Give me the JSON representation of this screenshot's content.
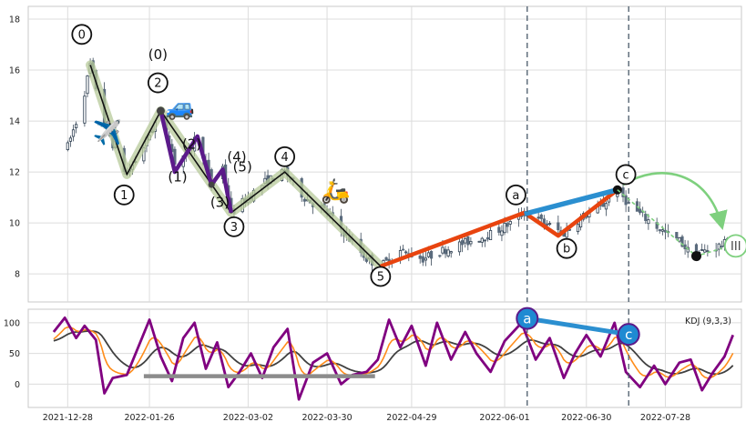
{
  "chart_data": [
    {
      "type": "candlestick",
      "panel": "price",
      "ylim": [
        6.9,
        18.5
      ],
      "xlim": [
        "2021-12-14",
        "2022-08-24"
      ],
      "yticks": [
        8,
        10,
        12,
        14,
        16,
        18
      ],
      "grid": true,
      "price_path": [
        [
          "2021-12-28",
          13.0
        ],
        [
          "2022-01-02",
          14.6
        ],
        [
          "2022-01-05",
          16.2
        ],
        [
          "2022-01-10",
          14.0
        ],
        [
          "2022-01-15",
          12.5
        ],
        [
          "2022-01-18",
          11.9
        ],
        [
          "2022-01-24",
          13.0
        ],
        [
          "2022-01-30",
          14.4
        ],
        [
          "2022-02-04",
          12.4
        ],
        [
          "2022-02-09",
          12.8
        ],
        [
          "2022-02-12",
          13.5
        ],
        [
          "2022-02-17",
          11.5
        ],
        [
          "2022-02-21",
          12.2
        ],
        [
          "2022-02-24",
          10.4
        ],
        [
          "2022-03-02",
          11.0
        ],
        [
          "2022-03-08",
          11.6
        ],
        [
          "2022-03-15",
          12.0
        ],
        [
          "2022-03-22",
          11.0
        ],
        [
          "2022-03-30",
          10.4
        ],
        [
          "2022-04-06",
          9.5
        ],
        [
          "2022-04-13",
          8.6
        ],
        [
          "2022-04-18",
          8.3
        ],
        [
          "2022-04-25",
          8.9
        ],
        [
          "2022-05-03",
          8.6
        ],
        [
          "2022-05-12",
          9.0
        ],
        [
          "2022-05-20",
          9.3
        ],
        [
          "2022-05-28",
          9.6
        ],
        [
          "2022-06-03",
          10.0
        ],
        [
          "2022-06-08",
          10.4
        ],
        [
          "2022-06-15",
          10.0
        ],
        [
          "2022-06-22",
          9.6
        ],
        [
          "2022-06-28",
          10.2
        ],
        [
          "2022-07-05",
          10.6
        ],
        [
          "2022-07-11",
          11.3
        ],
        [
          "2022-07-16",
          10.6
        ],
        [
          "2022-07-22",
          10.1
        ],
        [
          "2022-07-28",
          9.6
        ],
        [
          "2022-08-02",
          9.3
        ],
        [
          "2022-08-06",
          8.8
        ],
        [
          "2022-08-11",
          8.9
        ],
        [
          "2022-08-16",
          9.1
        ],
        [
          "2022-08-21",
          9.3
        ]
      ],
      "elliott_main": [
        [
          "2022-01-05",
          16.2
        ],
        [
          "2022-01-18",
          11.9
        ],
        [
          "2022-01-30",
          14.4
        ],
        [
          "2022-02-24",
          10.4
        ],
        [
          "2022-03-15",
          12.0
        ],
        [
          "2022-04-18",
          8.3
        ]
      ],
      "elliott_sub": [
        [
          "2022-01-30",
          14.4
        ],
        [
          "2022-02-04",
          12.0
        ],
        [
          "2022-02-12",
          13.4
        ],
        [
          "2022-02-17",
          11.5
        ],
        [
          "2022-02-21",
          12.1
        ],
        [
          "2022-02-24",
          10.4
        ]
      ],
      "correction_abc": [
        [
          "2022-04-18",
          8.3
        ],
        [
          "2022-06-08",
          10.4
        ],
        [
          "2022-06-20",
          9.5
        ],
        [
          "2022-07-11",
          11.3
        ]
      ],
      "ac_line": [
        [
          "2022-06-08",
          10.35
        ],
        [
          "2022-07-11",
          11.3
        ]
      ],
      "projection": [
        [
          "2022-07-11",
          11.3
        ],
        [
          "2022-08-08",
          8.7
        ],
        [
          "2022-08-17",
          9.0
        ]
      ],
      "wave_labels": [
        {
          "text": "0",
          "x": "2022-01-02",
          "y": 17.4,
          "circled": true
        },
        {
          "text": "1",
          "x": "2022-01-17",
          "y": 11.1,
          "circled": true
        },
        {
          "text": "2",
          "x": "2022-01-29",
          "y": 15.5,
          "circled": true
        },
        {
          "text": "3",
          "x": "2022-02-25",
          "y": 9.85,
          "circled": true
        },
        {
          "text": "4",
          "x": "2022-03-15",
          "y": 12.6,
          "circled": true
        },
        {
          "text": "5",
          "x": "2022-04-18",
          "y": 7.9,
          "circled": true
        },
        {
          "text": "(0)",
          "x": "2022-01-29",
          "y": 16.6,
          "circled": false
        },
        {
          "text": "(1)",
          "x": "2022-02-05",
          "y": 11.8,
          "circled": false
        },
        {
          "text": "(2)",
          "x": "2022-02-10",
          "y": 13.1,
          "circled": false
        },
        {
          "text": "(3)",
          "x": "2022-02-20",
          "y": 10.8,
          "circled": false
        },
        {
          "text": "(4)",
          "x": "2022-02-26",
          "y": 12.6,
          "circled": false
        },
        {
          "text": "(5)",
          "x": "2022-02-28",
          "y": 12.2,
          "circled": false
        },
        {
          "text": "a",
          "x": "2022-06-05",
          "y": 11.1,
          "circled": true
        },
        {
          "text": "b",
          "x": "2022-06-23",
          "y": 9.0,
          "circled": true
        },
        {
          "text": "c",
          "x": "2022-07-14",
          "y": 11.9,
          "circled": true
        },
        {
          "text": "III",
          "x": "2022-08-22",
          "y": 9.1,
          "circled": true,
          "color": "#7ed07e"
        }
      ],
      "emojis": [
        {
          "icon": "airplane",
          "glyph": "✈️",
          "x": "2022-01-11",
          "y": 13.6
        },
        {
          "icon": "car",
          "glyph": "🚙",
          "x": "2022-02-06",
          "y": 14.6
        },
        {
          "icon": "scooter",
          "glyph": "🛵",
          "x": "2022-04-02",
          "y": 11.3
        }
      ],
      "vlines": [
        "2022-06-09",
        "2022-07-15"
      ],
      "xticks": [
        {
          "label": "2021-12-28",
          "x": "2021-12-28"
        },
        {
          "label": "2022-01-26",
          "x": "2022-01-26"
        },
        {
          "label": "2022-03-02",
          "x": "2022-03-02"
        },
        {
          "label": "2022-03-30",
          "x": "2022-03-30"
        },
        {
          "label": "2022-04-29",
          "x": "2022-04-29"
        },
        {
          "label": "2022-06-01",
          "x": "2022-06-01"
        },
        {
          "label": "2022-06-30",
          "x": "2022-06-30"
        },
        {
          "label": "2022-07-28",
          "x": "2022-07-28"
        }
      ]
    },
    {
      "type": "line",
      "panel": "kdj",
      "title": "KDJ (9,3,3)",
      "ylim": [
        -38,
        122
      ],
      "yticks": [
        0,
        50,
        100
      ],
      "grid": true,
      "colors": {
        "J": "#800080",
        "D": "#ff8c1a",
        "K": "#404040"
      },
      "j_path": [
        [
          "2021-12-23",
          85
        ],
        [
          "2021-12-27",
          108
        ],
        [
          "2021-12-31",
          75
        ],
        [
          "2022-01-03",
          95
        ],
        [
          "2022-01-07",
          72
        ],
        [
          "2022-01-10",
          -15
        ],
        [
          "2022-01-13",
          10
        ],
        [
          "2022-01-18",
          15
        ],
        [
          "2022-01-22",
          60
        ],
        [
          "2022-01-26",
          105
        ],
        [
          "2022-01-30",
          45
        ],
        [
          "2022-02-03",
          5
        ],
        [
          "2022-02-07",
          75
        ],
        [
          "2022-02-11",
          100
        ],
        [
          "2022-02-15",
          25
        ],
        [
          "2022-02-19",
          68
        ],
        [
          "2022-02-23",
          -5
        ],
        [
          "2022-02-27",
          20
        ],
        [
          "2022-03-03",
          50
        ],
        [
          "2022-03-07",
          10
        ],
        [
          "2022-03-11",
          60
        ],
        [
          "2022-03-16",
          90
        ],
        [
          "2022-03-20",
          -25
        ],
        [
          "2022-03-25",
          35
        ],
        [
          "2022-03-30",
          50
        ],
        [
          "2022-04-04",
          0
        ],
        [
          "2022-04-08",
          15
        ],
        [
          "2022-04-13",
          20
        ],
        [
          "2022-04-17",
          40
        ],
        [
          "2022-04-21",
          105
        ],
        [
          "2022-04-25",
          60
        ],
        [
          "2022-04-29",
          95
        ],
        [
          "2022-05-04",
          30
        ],
        [
          "2022-05-08",
          100
        ],
        [
          "2022-05-13",
          40
        ],
        [
          "2022-05-18",
          85
        ],
        [
          "2022-05-22",
          50
        ],
        [
          "2022-05-27",
          20
        ],
        [
          "2022-06-01",
          70
        ],
        [
          "2022-06-07",
          100
        ],
        [
          "2022-06-12",
          40
        ],
        [
          "2022-06-17",
          75
        ],
        [
          "2022-06-22",
          10
        ],
        [
          "2022-06-26",
          50
        ],
        [
          "2022-06-30",
          80
        ],
        [
          "2022-07-05",
          45
        ],
        [
          "2022-07-10",
          100
        ],
        [
          "2022-07-14",
          20
        ],
        [
          "2022-07-19",
          -5
        ],
        [
          "2022-07-24",
          30
        ],
        [
          "2022-07-28",
          0
        ],
        [
          "2022-08-02",
          35
        ],
        [
          "2022-08-06",
          40
        ],
        [
          "2022-08-10",
          -10
        ],
        [
          "2022-08-14",
          20
        ],
        [
          "2022-08-18",
          45
        ],
        [
          "2022-08-21",
          80
        ]
      ],
      "flat_line": [
        [
          "2022-01-24",
          13
        ],
        [
          "2022-04-16",
          13
        ]
      ],
      "ac_markers": [
        {
          "text": "a",
          "x": "2022-06-09",
          "y": 107
        },
        {
          "text": "c",
          "x": "2022-07-15",
          "y": 81
        }
      ],
      "vlines": [
        "2022-06-09",
        "2022-07-15"
      ]
    }
  ]
}
